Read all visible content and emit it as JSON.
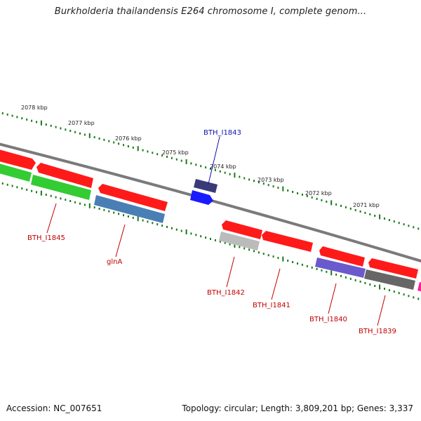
{
  "title": "Burkholderia thailandensis E264 chromosome I, complete genom...",
  "footer": {
    "accession": "Accession: NC_007651",
    "summary": "Topology: circular; Length: 3,809,201 bp; Genes: 3,337"
  },
  "scale_labels": [
    "2078 kbp",
    "2077 kbp",
    "2076 kbp",
    "2075 kbp",
    "2074 kbp",
    "2073 kbp",
    "2072 kbp",
    "2071 kbp"
  ],
  "gene_labels": [
    "BTH_I1843",
    "BTH_I1845",
    "glnA",
    "BTH_I1842",
    "BTH_I1841",
    "BTH_I1840",
    "BTH_I1839"
  ],
  "colors": {
    "red": "#ff1a1a",
    "green": "#33cc33",
    "steel": "#4a7fb5",
    "navy": "#3a3a7a",
    "blue": "#1a1aff",
    "lavender": "#6a5acd",
    "gray": "#bbbbbb",
    "darkgray": "#666666",
    "magenta": "#ff1aa0",
    "tick": "#1a7a1a",
    "label_red": "#c00000",
    "label_blue": "#1010b0"
  }
}
